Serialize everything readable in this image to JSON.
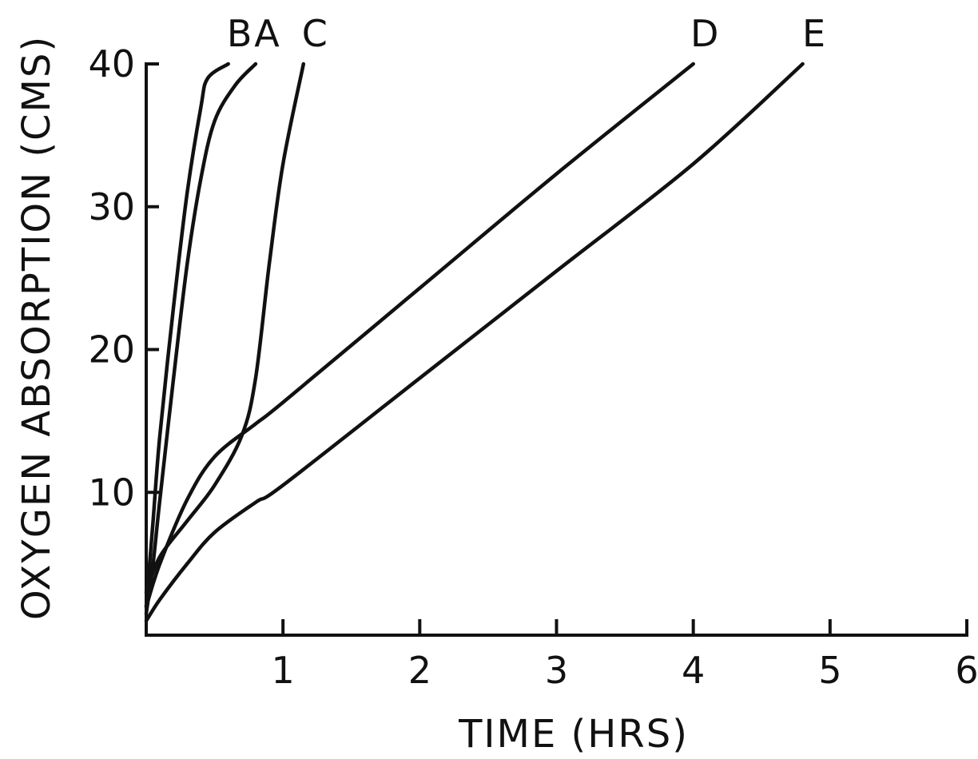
{
  "chart_data": {
    "type": "line",
    "title": "",
    "xlabel": "TIME (HRS)",
    "ylabel": "OXYGEN ABSORPTION (CMS)",
    "xlim": [
      0,
      6
    ],
    "ylim": [
      0,
      40
    ],
    "x_ticks": [
      1,
      2,
      3,
      4,
      5,
      6
    ],
    "y_ticks": [
      10,
      20,
      30,
      40
    ],
    "grid": false,
    "legend": "direct-labels-top",
    "series": [
      {
        "name": "B",
        "points": [
          [
            0,
            2
          ],
          [
            0.05,
            8
          ],
          [
            0.1,
            14
          ],
          [
            0.2,
            23
          ],
          [
            0.3,
            31
          ],
          [
            0.4,
            37
          ],
          [
            0.45,
            39
          ],
          [
            0.6,
            40
          ]
        ]
      },
      {
        "name": "A",
        "points": [
          [
            0,
            1.5
          ],
          [
            0.05,
            5
          ],
          [
            0.1,
            9.5
          ],
          [
            0.2,
            18
          ],
          [
            0.3,
            26
          ],
          [
            0.4,
            32
          ],
          [
            0.5,
            36
          ],
          [
            0.65,
            38.5
          ],
          [
            0.8,
            40
          ]
        ]
      },
      {
        "name": "C",
        "points": [
          [
            0,
            3
          ],
          [
            0.1,
            5.5
          ],
          [
            0.3,
            8
          ],
          [
            0.5,
            10.5
          ],
          [
            0.7,
            14
          ],
          [
            0.8,
            18
          ],
          [
            0.9,
            26
          ],
          [
            1.0,
            33
          ],
          [
            1.15,
            40
          ]
        ]
      },
      {
        "name": "D",
        "points": [
          [
            0,
            2
          ],
          [
            0.1,
            5
          ],
          [
            0.3,
            9.5
          ],
          [
            0.5,
            12.5
          ],
          [
            0.8,
            14.8
          ],
          [
            1.0,
            16.3
          ],
          [
            2.0,
            24.3
          ],
          [
            3.0,
            32.3
          ],
          [
            4.0,
            40
          ]
        ]
      },
      {
        "name": "E",
        "points": [
          [
            0,
            1
          ],
          [
            0.1,
            2.5
          ],
          [
            0.3,
            5
          ],
          [
            0.5,
            7.2
          ],
          [
            0.8,
            9.3
          ],
          [
            1.0,
            10.5
          ],
          [
            2.0,
            18
          ],
          [
            3.0,
            25.5
          ],
          [
            4.0,
            33
          ],
          [
            4.8,
            40
          ]
        ]
      }
    ]
  }
}
